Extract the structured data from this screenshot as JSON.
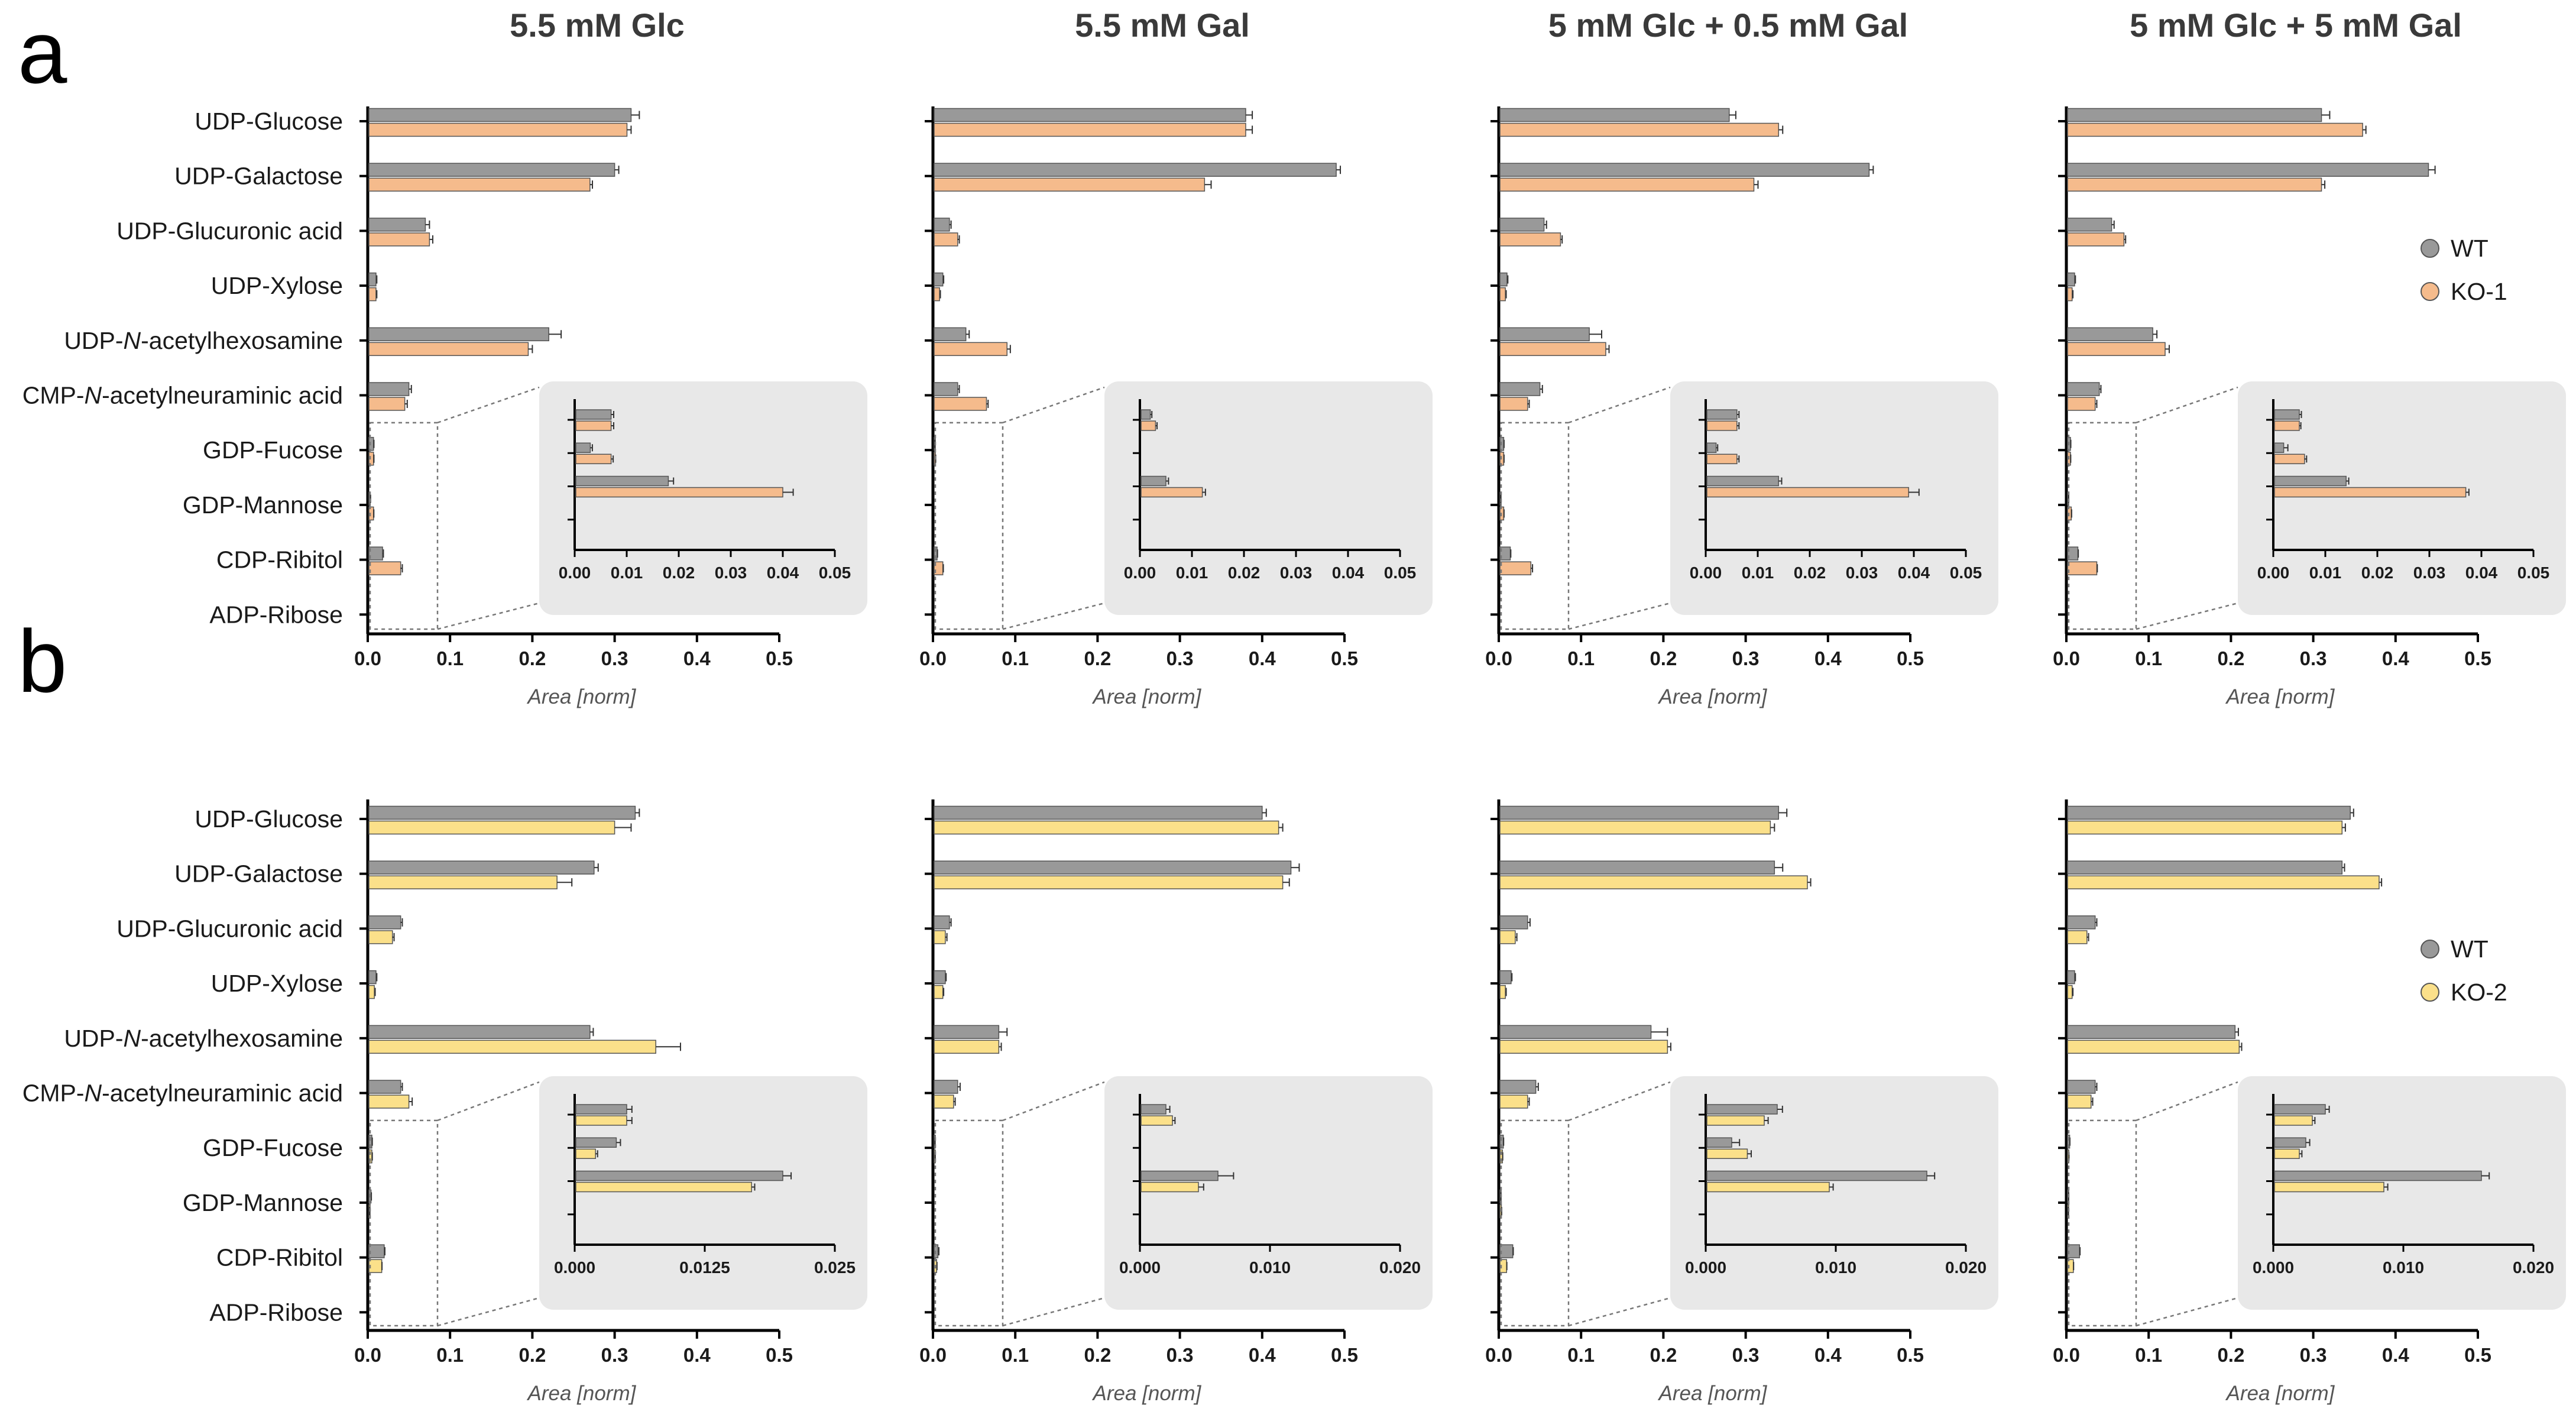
{
  "colors": {
    "wt": "#999999",
    "ko1": "#f5bb8c",
    "ko2": "#fbe08a",
    "inset_bg": "#e8e8e8",
    "axis": "#000000"
  },
  "categories": [
    "UDP-Glucose",
    "UDP-Galactose",
    "UDP-Glucuronic acid",
    "UDP-Xylose",
    "UDP-N-acetylhexosamine",
    "CMP-N-acetylneuraminic acid",
    "GDP-Fucose",
    "GDP-Mannose",
    "CDP-Ribitol",
    "ADP-Ribose"
  ],
  "conditions": [
    "5.5 mM Glc",
    "5.5 mM Gal",
    "5 mM Glc + 0.5 mM Gal",
    "5 mM Glc + 5 mM Gal"
  ],
  "x_axis_title": "Area [norm]",
  "chart_data": [
    {
      "panel": "a",
      "type": "bar",
      "orientation": "horizontal",
      "legend": {
        "placement": "right",
        "entries": [
          "WT",
          "KO-1"
        ]
      },
      "xlim": [
        0,
        0.5
      ],
      "xticks": [
        "0.0",
        "0.1",
        "0.2",
        "0.3",
        "0.4",
        "0.5"
      ],
      "inset": {
        "xlim": [
          0,
          0.05
        ],
        "xticks": [
          "0.00",
          "0.01",
          "0.02",
          "0.03",
          "0.04",
          "0.05"
        ],
        "categories": [
          "GDP-Fucose",
          "GDP-Mannose",
          "CDP-Ribitol",
          "ADP-Ribose"
        ]
      },
      "subplots": [
        {
          "title": "5.5 mM Glc",
          "series": [
            {
              "name": "WT",
              "values": [
                0.32,
                0.3,
                0.07,
                0.01,
                0.22,
                0.05,
                0.007,
                0.003,
                0.018,
                0.0
              ],
              "errors": [
                0.01,
                0.005,
                0.005,
                0.001,
                0.015,
                0.003,
                0.0005,
                0.0004,
                0.001,
                0.0
              ]
            },
            {
              "name": "KO-1",
              "values": [
                0.315,
                0.27,
                0.075,
                0.01,
                0.195,
                0.045,
                0.007,
                0.007,
                0.04,
                0.0
              ],
              "errors": [
                0.005,
                0.003,
                0.004,
                0.001,
                0.005,
                0.003,
                0.0005,
                0.0004,
                0.002,
                0.0
              ]
            }
          ]
        },
        {
          "title": "5.5 mM Gal",
          "series": [
            {
              "name": "WT",
              "values": [
                0.38,
                0.49,
                0.02,
                0.012,
                0.04,
                0.03,
                0.002,
                0.0,
                0.005,
                0.0
              ],
              "errors": [
                0.008,
                0.005,
                0.002,
                0.001,
                0.004,
                0.002,
                0.0003,
                0.0,
                0.0005,
                0.0
              ]
            },
            {
              "name": "KO-1",
              "values": [
                0.38,
                0.33,
                0.03,
                0.008,
                0.09,
                0.065,
                0.003,
                0.0,
                0.012,
                0.0
              ],
              "errors": [
                0.008,
                0.008,
                0.002,
                0.001,
                0.004,
                0.002,
                0.0003,
                0.0,
                0.0006,
                0.0
              ]
            }
          ]
        },
        {
          "title": "5 mM Glc + 0.5 mM Gal",
          "series": [
            {
              "name": "WT",
              "values": [
                0.28,
                0.45,
                0.055,
                0.01,
                0.11,
                0.05,
                0.006,
                0.002,
                0.014,
                0.0
              ],
              "errors": [
                0.008,
                0.005,
                0.003,
                0.001,
                0.015,
                0.003,
                0.0004,
                0.0003,
                0.0006,
                0.0
              ]
            },
            {
              "name": "KO-1",
              "values": [
                0.34,
                0.31,
                0.075,
                0.008,
                0.13,
                0.035,
                0.006,
                0.006,
                0.039,
                0.0
              ],
              "errors": [
                0.005,
                0.005,
                0.002,
                0.001,
                0.004,
                0.002,
                0.0004,
                0.0004,
                0.002,
                0.0
              ]
            }
          ]
        },
        {
          "title": "5 mM Glc + 5 mM Gal",
          "series": [
            {
              "name": "WT",
              "values": [
                0.31,
                0.44,
                0.055,
                0.01,
                0.105,
                0.04,
                0.005,
                0.002,
                0.014,
                0.0
              ],
              "errors": [
                0.01,
                0.008,
                0.003,
                0.001,
                0.005,
                0.002,
                0.0004,
                0.0008,
                0.0005,
                0.0
              ]
            },
            {
              "name": "KO-1",
              "values": [
                0.36,
                0.31,
                0.07,
                0.007,
                0.12,
                0.035,
                0.005,
                0.006,
                0.037,
                0.0
              ],
              "errors": [
                0.004,
                0.004,
                0.002,
                0.001,
                0.005,
                0.002,
                0.0003,
                0.0004,
                0.0006,
                0.0
              ]
            }
          ]
        }
      ]
    },
    {
      "panel": "b",
      "type": "bar",
      "orientation": "horizontal",
      "legend": {
        "placement": "right",
        "entries": [
          "WT",
          "KO-2"
        ]
      },
      "xlim": [
        0,
        0.5
      ],
      "xticks": [
        "0.0",
        "0.1",
        "0.2",
        "0.3",
        "0.4",
        "0.5"
      ],
      "insets": [
        {
          "xlim": [
            0,
            0.025
          ],
          "xticks": [
            "0.000",
            "0.0125",
            "0.025"
          ]
        },
        {
          "xlim": [
            0,
            0.02
          ],
          "xticks": [
            "0.000",
            "0.010",
            "0.020"
          ]
        },
        {
          "xlim": [
            0,
            0.02
          ],
          "xticks": [
            "0.000",
            "0.010",
            "0.020"
          ]
        },
        {
          "xlim": [
            0,
            0.02
          ],
          "xticks": [
            "0.000",
            "0.010",
            "0.020"
          ]
        }
      ],
      "subplots": [
        {
          "title": "5.5 mM Glc",
          "series": [
            {
              "name": "WT",
              "values": [
                0.325,
                0.275,
                0.04,
                0.01,
                0.27,
                0.04,
                0.005,
                0.004,
                0.02,
                0.0
              ],
              "errors": [
                0.005,
                0.005,
                0.002,
                0.001,
                0.004,
                0.002,
                0.0005,
                0.0004,
                0.0008,
                0.0
              ]
            },
            {
              "name": "KO-2",
              "values": [
                0.3,
                0.23,
                0.03,
                0.008,
                0.35,
                0.05,
                0.005,
                0.002,
                0.017,
                0.0
              ],
              "errors": [
                0.02,
                0.018,
                0.002,
                0.001,
                0.03,
                0.004,
                0.0005,
                0.0002,
                0.0003,
                0.0
              ]
            }
          ]
        },
        {
          "title": "5.5 mM Gal",
          "series": [
            {
              "name": "WT",
              "values": [
                0.4,
                0.435,
                0.02,
                0.015,
                0.08,
                0.03,
                0.002,
                0.0,
                0.006,
                0.0
              ],
              "errors": [
                0.005,
                0.01,
                0.002,
                0.001,
                0.01,
                0.003,
                0.0003,
                0.0,
                0.0012,
                0.0
              ]
            },
            {
              "name": "KO-2",
              "values": [
                0.42,
                0.425,
                0.015,
                0.012,
                0.08,
                0.025,
                0.0025,
                0.0,
                0.0045,
                0.0
              ],
              "errors": [
                0.005,
                0.008,
                0.002,
                0.001,
                0.003,
                0.002,
                0.0002,
                0.0,
                0.0004,
                0.0
              ]
            }
          ]
        },
        {
          "title": "5 mM Glc + 0.5 mM Gal",
          "series": [
            {
              "name": "WT",
              "values": [
                0.34,
                0.335,
                0.035,
                0.015,
                0.185,
                0.045,
                0.0055,
                0.002,
                0.017,
                0.0
              ],
              "errors": [
                0.01,
                0.01,
                0.003,
                0.001,
                0.02,
                0.003,
                0.0004,
                0.0006,
                0.0006,
                0.0
              ]
            },
            {
              "name": "KO-2",
              "values": [
                0.33,
                0.375,
                0.02,
                0.008,
                0.205,
                0.035,
                0.0045,
                0.0032,
                0.0095,
                0.0
              ],
              "errors": [
                0.005,
                0.004,
                0.002,
                0.001,
                0.004,
                0.002,
                0.0003,
                0.0003,
                0.0003,
                0.0
              ]
            }
          ]
        },
        {
          "title": "5 mM Glc + 5 mM Gal",
          "series": [
            {
              "name": "WT",
              "values": [
                0.345,
                0.335,
                0.035,
                0.01,
                0.205,
                0.035,
                0.004,
                0.0025,
                0.016,
                0.0
              ],
              "errors": [
                0.004,
                0.003,
                0.002,
                0.001,
                0.004,
                0.002,
                0.0003,
                0.0003,
                0.0006,
                0.0
              ]
            },
            {
              "name": "KO-2",
              "values": [
                0.335,
                0.38,
                0.025,
                0.007,
                0.21,
                0.03,
                0.003,
                0.002,
                0.0085,
                0.0
              ],
              "errors": [
                0.004,
                0.003,
                0.002,
                0.001,
                0.003,
                0.002,
                0.0002,
                0.0002,
                0.0003,
                0.0
              ]
            }
          ]
        }
      ]
    }
  ]
}
